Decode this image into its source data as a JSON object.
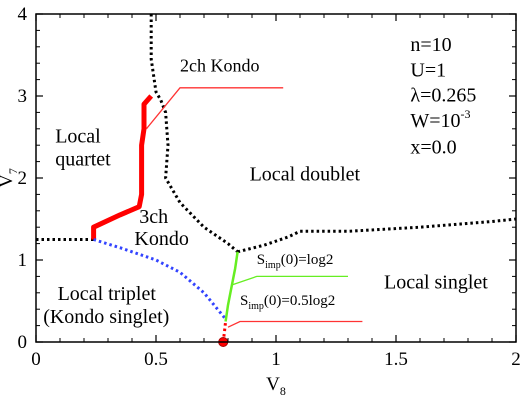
{
  "chart_data": {
    "type": "line",
    "title": "",
    "xlabel": "V",
    "xlabel_sub": "8",
    "ylabel": "V",
    "ylabel_sub": "7",
    "xlim": [
      0,
      2
    ],
    "ylim": [
      0,
      4
    ],
    "xticks": [
      {
        "value": 0,
        "label": "0"
      },
      {
        "value": 0.5,
        "label": "0.5"
      },
      {
        "value": 1,
        "label": "1"
      },
      {
        "value": 1.5,
        "label": "1.5"
      },
      {
        "value": 2,
        "label": "2"
      }
    ],
    "yticks": [
      {
        "value": 0,
        "label": "0"
      },
      {
        "value": 1,
        "label": "1"
      },
      {
        "value": 2,
        "label": "2"
      },
      {
        "value": 3,
        "label": "3"
      },
      {
        "value": 4,
        "label": "4"
      }
    ],
    "grid": false,
    "series": [
      {
        "style": "dotted",
        "color": "#000000",
        "x": [
          0.0,
          0.24
        ],
        "y": [
          1.25,
          1.25
        ]
      },
      {
        "style": "dotted",
        "color": "#000000",
        "x": [
          0.48,
          0.48,
          0.5,
          0.52,
          0.54,
          0.55,
          0.54,
          0.6,
          0.7,
          0.8,
          0.84
        ],
        "y": [
          4.0,
          3.45,
          3.05,
          2.95,
          2.8,
          2.4,
          2.0,
          1.7,
          1.4,
          1.2,
          1.1
        ]
      },
      {
        "style": "dotted",
        "color": "#000000",
        "x": [
          0.84,
          0.95,
          1.05,
          1.1,
          1.3,
          1.6,
          1.9,
          2.0
        ],
        "y": [
          1.1,
          1.18,
          1.28,
          1.35,
          1.35,
          1.4,
          1.47,
          1.5
        ]
      },
      {
        "style": "solid",
        "color": "#ff0000",
        "width": 5,
        "x": [
          0.24,
          0.24,
          0.35,
          0.43,
          0.44,
          0.44,
          0.45,
          0.45,
          0.48
        ],
        "y": [
          1.25,
          1.4,
          1.55,
          1.65,
          1.8,
          2.4,
          2.6,
          2.9,
          3.0
        ]
      },
      {
        "style": "dotted",
        "color": "#3344ff",
        "x": [
          0.24,
          0.35,
          0.5,
          0.6,
          0.7,
          0.79
        ],
        "y": [
          1.25,
          1.15,
          1.0,
          0.85,
          0.6,
          0.28
        ]
      },
      {
        "style": "solid",
        "color": "#66ee22",
        "width": 2.5,
        "x": [
          0.79,
          0.8,
          0.81,
          0.82,
          0.83,
          0.84
        ],
        "y": [
          0.25,
          0.45,
          0.6,
          0.75,
          0.9,
          1.1
        ]
      },
      {
        "style": "dotted",
        "color": "#ff0000",
        "x": [
          0.78,
          0.785,
          0.79
        ],
        "y": [
          0.0,
          0.12,
          0.25
        ]
      }
    ],
    "points": [
      {
        "x": 0.78,
        "y": 0.0,
        "color": "#ff0000",
        "stroke": "#aa0000"
      }
    ],
    "region_labels": [
      {
        "text": "Local",
        "x": 0.08,
        "y": 2.43
      },
      {
        "text": "quartet",
        "x": 0.08,
        "y": 2.15
      },
      {
        "text": "Local doublet",
        "x": 0.89,
        "y": 1.97
      },
      {
        "text": "3ch",
        "x": 0.43,
        "y": 1.45
      },
      {
        "text": "Kondo",
        "x": 0.41,
        "y": 1.18
      },
      {
        "text": "Local singlet",
        "x": 1.45,
        "y": 0.65
      },
      {
        "text": "Local triplet",
        "x": 0.09,
        "y": 0.51
      },
      {
        "text": "(Kondo singlet)",
        "x": 0.03,
        "y": 0.23
      }
    ],
    "parameters": [
      {
        "text": "n=10",
        "x": 1.56,
        "y": 3.55
      },
      {
        "text": "U=1",
        "x": 1.56,
        "y": 3.24
      },
      {
        "text": "λ=0.265",
        "x": 1.56,
        "y": 2.93
      },
      {
        "text": "W=10",
        "sup": "-3",
        "x": 1.56,
        "y": 2.62
      },
      {
        "text": "x=0.0",
        "x": 1.56,
        "y": 2.3
      }
    ],
    "annotations": [
      {
        "main": "2ch Kondo",
        "text_x": 0.6,
        "text_y": 3.3,
        "line_color": "#ff3333",
        "line_x": [
          1.03,
          0.6,
          0.46
        ],
        "line_y": [
          3.1,
          3.1,
          2.6
        ]
      },
      {
        "main": "S",
        "sub": "imp",
        "tail": "(0)=log2",
        "text_x": 0.92,
        "text_y": 0.95,
        "line_color": "#66ee22",
        "line_x": [
          1.3,
          0.92,
          0.82
        ],
        "line_y": [
          0.8,
          0.8,
          0.7
        ]
      },
      {
        "main": "S",
        "sub": "imp",
        "tail": "(0)=0.5log2",
        "text_x": 0.85,
        "text_y": 0.45,
        "line_color": "#ff3333",
        "line_x": [
          1.36,
          0.85,
          0.8
        ],
        "line_y": [
          0.25,
          0.25,
          0.18
        ]
      }
    ]
  }
}
